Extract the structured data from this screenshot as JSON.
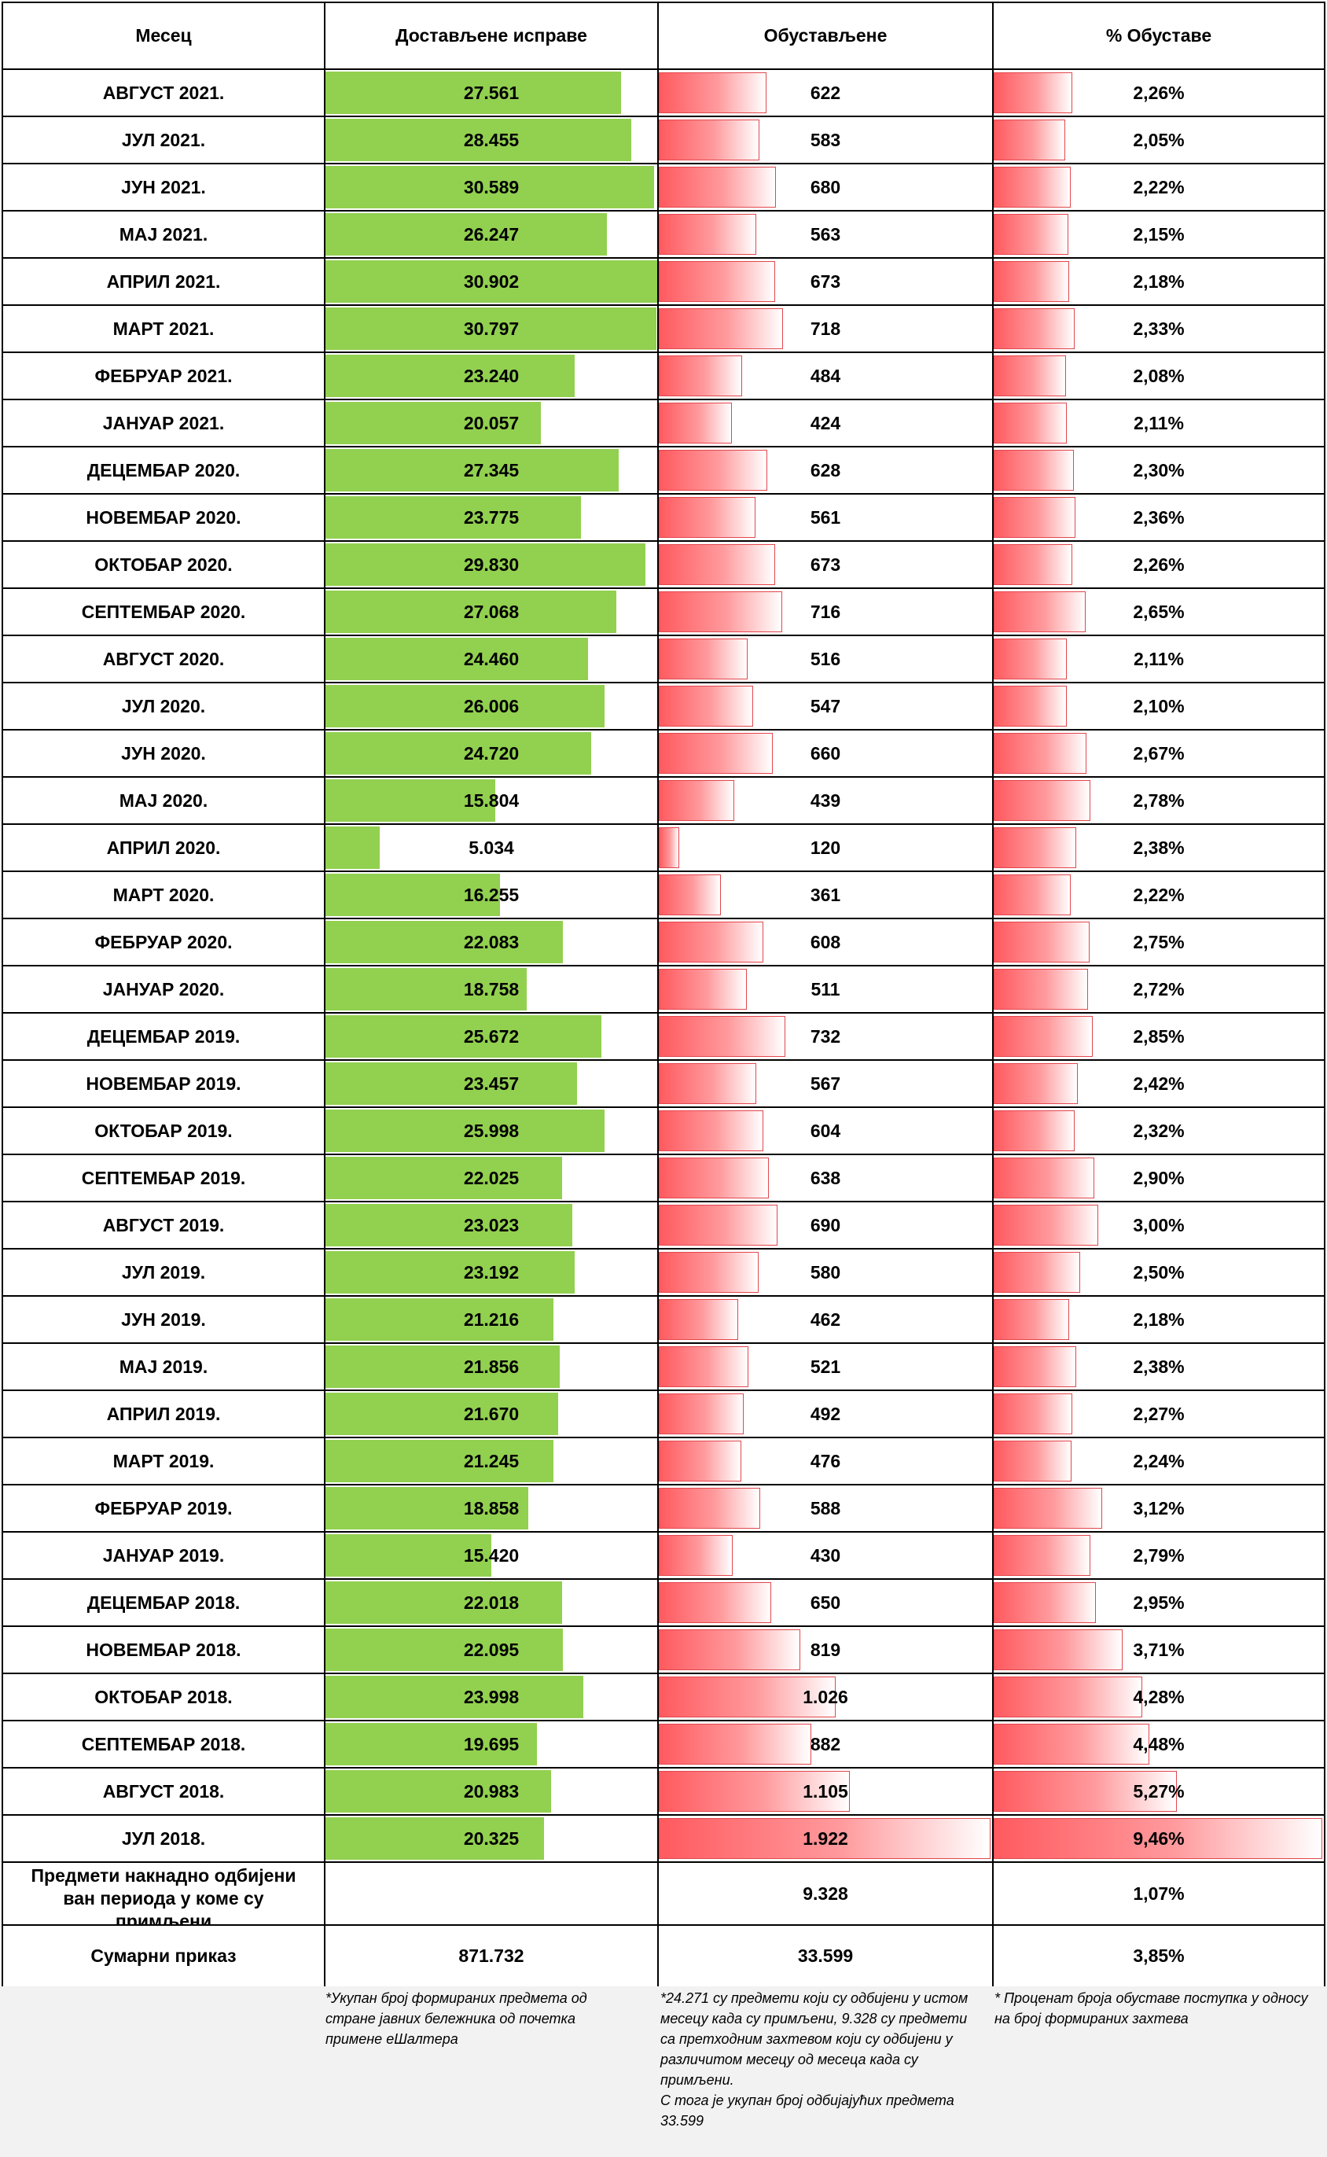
{
  "headers": {
    "month": "Месец",
    "delivered": "Достављене исправе",
    "suspended": "Обустављене",
    "percent": "% Обуставе"
  },
  "chart_data": {
    "type": "table",
    "columns": [
      "Месец",
      "Достављене исправе",
      "Обустављене",
      "% Обуставе"
    ],
    "rows": [
      {
        "month": "АВГУСТ 2021.",
        "delivered": "27.561",
        "delivered_value": 27561,
        "suspended": "622",
        "suspended_value": 622,
        "percent": "2,26%",
        "percent_value": 2.26
      },
      {
        "month": "ЈУЛ 2021.",
        "delivered": "28.455",
        "delivered_value": 28455,
        "suspended": "583",
        "suspended_value": 583,
        "percent": "2,05%",
        "percent_value": 2.05
      },
      {
        "month": "ЈУН 2021.",
        "delivered": "30.589",
        "delivered_value": 30589,
        "suspended": "680",
        "suspended_value": 680,
        "percent": "2,22%",
        "percent_value": 2.22
      },
      {
        "month": "МАЈ 2021.",
        "delivered": "26.247",
        "delivered_value": 26247,
        "suspended": "563",
        "suspended_value": 563,
        "percent": "2,15%",
        "percent_value": 2.15
      },
      {
        "month": "АПРИЛ 2021.",
        "delivered": "30.902",
        "delivered_value": 30902,
        "suspended": "673",
        "suspended_value": 673,
        "percent": "2,18%",
        "percent_value": 2.18
      },
      {
        "month": "МАРТ 2021.",
        "delivered": "30.797",
        "delivered_value": 30797,
        "suspended": "718",
        "suspended_value": 718,
        "percent": "2,33%",
        "percent_value": 2.33
      },
      {
        "month": "ФЕБРУАР 2021.",
        "delivered": "23.240",
        "delivered_value": 23240,
        "suspended": "484",
        "suspended_value": 484,
        "percent": "2,08%",
        "percent_value": 2.08
      },
      {
        "month": "ЈАНУАР 2021.",
        "delivered": "20.057",
        "delivered_value": 20057,
        "suspended": "424",
        "suspended_value": 424,
        "percent": "2,11%",
        "percent_value": 2.11
      },
      {
        "month": "ДЕЦЕМБАР 2020.",
        "delivered": "27.345",
        "delivered_value": 27345,
        "suspended": "628",
        "suspended_value": 628,
        "percent": "2,30%",
        "percent_value": 2.3
      },
      {
        "month": "НОВЕМБАР 2020.",
        "delivered": "23.775",
        "delivered_value": 23775,
        "suspended": "561",
        "suspended_value": 561,
        "percent": "2,36%",
        "percent_value": 2.36
      },
      {
        "month": "ОКТОБАР 2020.",
        "delivered": "29.830",
        "delivered_value": 29830,
        "suspended": "673",
        "suspended_value": 673,
        "percent": "2,26%",
        "percent_value": 2.26
      },
      {
        "month": "СЕПТЕМБАР 2020.",
        "delivered": "27.068",
        "delivered_value": 27068,
        "suspended": "716",
        "suspended_value": 716,
        "percent": "2,65%",
        "percent_value": 2.65
      },
      {
        "month": "АВГУСТ 2020.",
        "delivered": "24.460",
        "delivered_value": 24460,
        "suspended": "516",
        "suspended_value": 516,
        "percent": "2,11%",
        "percent_value": 2.11
      },
      {
        "month": "ЈУЛ 2020.",
        "delivered": "26.006",
        "delivered_value": 26006,
        "suspended": "547",
        "suspended_value": 547,
        "percent": "2,10%",
        "percent_value": 2.1
      },
      {
        "month": "ЈУН 2020.",
        "delivered": "24.720",
        "delivered_value": 24720,
        "suspended": "660",
        "suspended_value": 660,
        "percent": "2,67%",
        "percent_value": 2.67
      },
      {
        "month": "МАЈ 2020.",
        "delivered": "15.804",
        "delivered_value": 15804,
        "suspended": "439",
        "suspended_value": 439,
        "percent": "2,78%",
        "percent_value": 2.78
      },
      {
        "month": "АПРИЛ 2020.",
        "delivered": "5.034",
        "delivered_value": 5034,
        "suspended": "120",
        "suspended_value": 120,
        "percent": "2,38%",
        "percent_value": 2.38
      },
      {
        "month": "МАРТ 2020.",
        "delivered": "16.255",
        "delivered_value": 16255,
        "suspended": "361",
        "suspended_value": 361,
        "percent": "2,22%",
        "percent_value": 2.22
      },
      {
        "month": "ФЕБРУАР 2020.",
        "delivered": "22.083",
        "delivered_value": 22083,
        "suspended": "608",
        "suspended_value": 608,
        "percent": "2,75%",
        "percent_value": 2.75
      },
      {
        "month": "ЈАНУАР 2020.",
        "delivered": "18.758",
        "delivered_value": 18758,
        "suspended": "511",
        "suspended_value": 511,
        "percent": "2,72%",
        "percent_value": 2.72
      },
      {
        "month": "ДЕЦЕМБАР 2019.",
        "delivered": "25.672",
        "delivered_value": 25672,
        "suspended": "732",
        "suspended_value": 732,
        "percent": "2,85%",
        "percent_value": 2.85
      },
      {
        "month": "НОВЕМБАР 2019.",
        "delivered": "23.457",
        "delivered_value": 23457,
        "suspended": "567",
        "suspended_value": 567,
        "percent": "2,42%",
        "percent_value": 2.42
      },
      {
        "month": "ОКТОБАР 2019.",
        "delivered": "25.998",
        "delivered_value": 25998,
        "suspended": "604",
        "suspended_value": 604,
        "percent": "2,32%",
        "percent_value": 2.32
      },
      {
        "month": "СЕПТЕМБАР 2019.",
        "delivered": "22.025",
        "delivered_value": 22025,
        "suspended": "638",
        "suspended_value": 638,
        "percent": "2,90%",
        "percent_value": 2.9
      },
      {
        "month": "АВГУСТ 2019.",
        "delivered": "23.023",
        "delivered_value": 23023,
        "suspended": "690",
        "suspended_value": 690,
        "percent": "3,00%",
        "percent_value": 3.0
      },
      {
        "month": "ЈУЛ 2019.",
        "delivered": "23.192",
        "delivered_value": 23192,
        "suspended": "580",
        "suspended_value": 580,
        "percent": "2,50%",
        "percent_value": 2.5
      },
      {
        "month": "ЈУН 2019.",
        "delivered": "21.216",
        "delivered_value": 21216,
        "suspended": "462",
        "suspended_value": 462,
        "percent": "2,18%",
        "percent_value": 2.18
      },
      {
        "month": "МАЈ 2019.",
        "delivered": "21.856",
        "delivered_value": 21856,
        "suspended": "521",
        "suspended_value": 521,
        "percent": "2,38%",
        "percent_value": 2.38
      },
      {
        "month": "АПРИЛ 2019.",
        "delivered": "21.670",
        "delivered_value": 21670,
        "suspended": "492",
        "suspended_value": 492,
        "percent": "2,27%",
        "percent_value": 2.27
      },
      {
        "month": "МАРТ 2019.",
        "delivered": "21.245",
        "delivered_value": 21245,
        "suspended": "476",
        "suspended_value": 476,
        "percent": "2,24%",
        "percent_value": 2.24
      },
      {
        "month": "ФЕБРУАР 2019.",
        "delivered": "18.858",
        "delivered_value": 18858,
        "suspended": "588",
        "suspended_value": 588,
        "percent": "3,12%",
        "percent_value": 3.12
      },
      {
        "month": "ЈАНУАР 2019.",
        "delivered": "15.420",
        "delivered_value": 15420,
        "suspended": "430",
        "suspended_value": 430,
        "percent": "2,79%",
        "percent_value": 2.79
      },
      {
        "month": "ДЕЦЕМБАР 2018.",
        "delivered": "22.018",
        "delivered_value": 22018,
        "suspended": "650",
        "suspended_value": 650,
        "percent": "2,95%",
        "percent_value": 2.95
      },
      {
        "month": "НОВЕМБАР 2018.",
        "delivered": "22.095",
        "delivered_value": 22095,
        "suspended": "819",
        "suspended_value": 819,
        "percent": "3,71%",
        "percent_value": 3.71
      },
      {
        "month": "ОКТОБАР 2018.",
        "delivered": "23.998",
        "delivered_value": 23998,
        "suspended": "1.026",
        "suspended_value": 1026,
        "percent": "4,28%",
        "percent_value": 4.28
      },
      {
        "month": "СЕПТЕМБАР 2018.",
        "delivered": "19.695",
        "delivered_value": 19695,
        "suspended": "882",
        "suspended_value": 882,
        "percent": "4,48%",
        "percent_value": 4.48
      },
      {
        "month": "АВГУСТ 2018.",
        "delivered": "20.983",
        "delivered_value": 20983,
        "suspended": "1.105",
        "suspended_value": 1105,
        "percent": "5,27%",
        "percent_value": 5.27
      },
      {
        "month": "ЈУЛ 2018.",
        "delivered": "20.325",
        "delivered_value": 20325,
        "suspended": "1.922",
        "suspended_value": 1922,
        "percent": "9,46%",
        "percent_value": 9.46
      }
    ],
    "scales": {
      "delivered_max": 30902,
      "suspended_max": 1922,
      "percent_max": 9.46
    },
    "colors": {
      "delivered_bar": "#92d050",
      "suspended_bar": "#ff5a5f",
      "percent_bar": "#ff5a5f"
    }
  },
  "extra_rows": {
    "later_rejected": {
      "label": "Предмети накнадно одбијени ван периода у коме су примљени",
      "delivered": "",
      "suspended": "9.328",
      "percent": "1,07%"
    },
    "summary": {
      "label": "Сумарни приказ",
      "delivered": "871.732",
      "suspended": "33.599",
      "percent": "3,85%"
    }
  },
  "notes": {
    "delivered": "*Укупан број формираних предмета од стране јавних бележника од почетка примене еШалтера",
    "suspended_line1": "*24.271 су предмети који су одбијени у истом месецу када су примљени, 9.328 су предмети са претходним захтевом који су одбијени у различитом месецу од месеца када су примљени.",
    "suspended_line2": "С тога је укупан број одбијајућих предмета 33.599",
    "percent": "* Проценат броја обуставе поступка у односу на број формираних захтева"
  }
}
